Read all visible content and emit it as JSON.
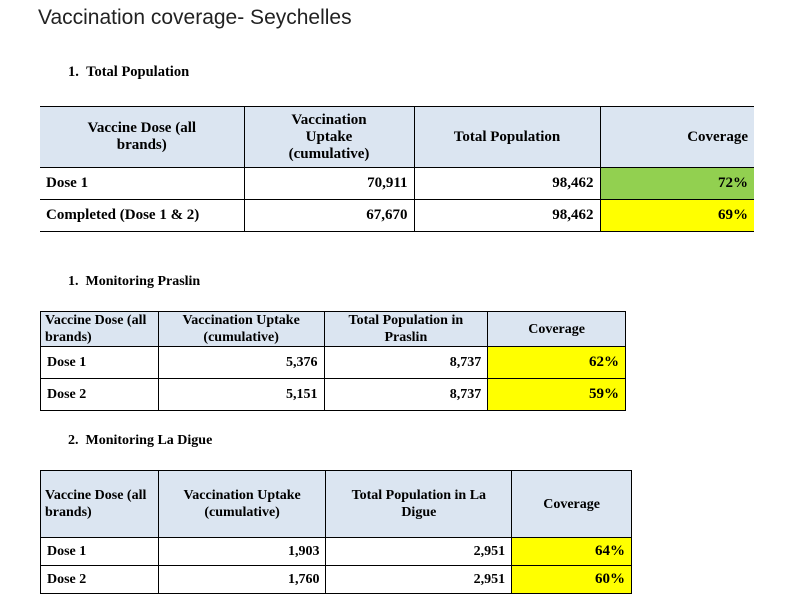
{
  "title": "Vaccination coverage- Seychelles",
  "sections": [
    {
      "heading": "1.  Total Population",
      "headers": [
        "Vaccine Dose (all brands)",
        "Vaccination Uptake (cumulative)",
        "Total Population",
        "Coverage"
      ],
      "rows": [
        {
          "dose": "Dose 1",
          "uptake": "70,911",
          "population": "98,462",
          "coverage": "72%",
          "highlight": "#92d050"
        },
        {
          "dose": "Completed (Dose 1 & 2)",
          "uptake": "67,670",
          "population": "98,462",
          "coverage": "69%",
          "highlight": "#ffff00"
        }
      ]
    },
    {
      "heading": "1.  Monitoring Praslin",
      "headers": [
        "Vaccine Dose (all brands)",
        "Vaccination Uptake (cumulative)",
        "Total Population in Praslin",
        "Coverage"
      ],
      "rows": [
        {
          "dose": "Dose 1",
          "uptake": "5,376",
          "population": "8,737",
          "coverage": "62%",
          "highlight": "#ffff00"
        },
        {
          "dose": "Dose 2",
          "uptake": "5,151",
          "population": "8,737",
          "coverage": "59%",
          "highlight": "#ffff00"
        }
      ]
    },
    {
      "heading": "2.  Monitoring La Digue",
      "headers": [
        "Vaccine Dose (all brands)",
        "Vaccination Uptake (cumulative)",
        "Total Population in La Digue",
        "Coverage"
      ],
      "rows": [
        {
          "dose": "Dose 1",
          "uptake": "1,903",
          "population": "2,951",
          "coverage": "64%",
          "highlight": "#ffff00"
        },
        {
          "dose": "Dose 2",
          "uptake": "1,760",
          "population": "2,951",
          "coverage": "60%",
          "highlight": "#ffff00"
        }
      ]
    }
  ],
  "colors": {
    "header_bg": "#dbe5f1",
    "green": "#92d050",
    "yellow": "#ffff00"
  }
}
